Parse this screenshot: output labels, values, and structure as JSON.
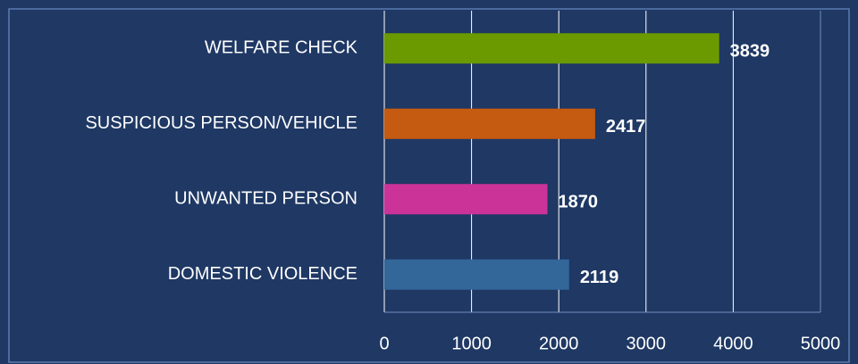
{
  "chart_data": {
    "type": "bar",
    "orientation": "horizontal",
    "categories": [
      "WELFARE CHECK",
      "SUSPICIOUS PERSON/VEHICLE",
      "UNWANTED PERSON",
      "DOMESTIC VIOLENCE"
    ],
    "values": [
      3839,
      2417,
      1870,
      2119
    ],
    "colors": [
      "#6a9a00",
      "#c55a11",
      "#cc3399",
      "#336699"
    ],
    "xlim": [
      0,
      5000
    ],
    "xticks": [
      0,
      1000,
      2000,
      3000,
      4000,
      5000
    ],
    "grid": true
  }
}
